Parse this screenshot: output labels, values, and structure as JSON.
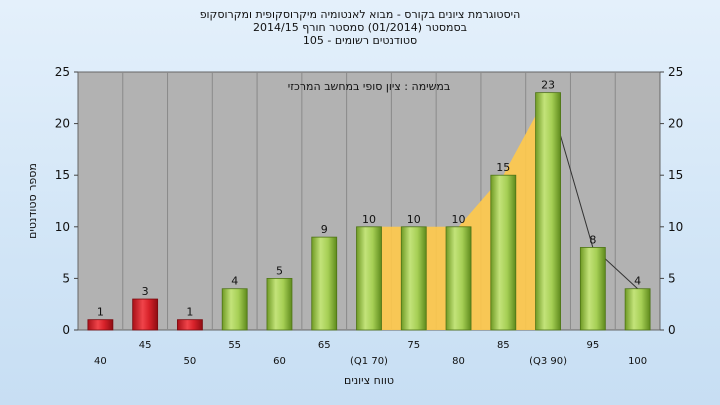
{
  "title_lines": [
    "היסטוגרמת ציונים בקורס - מבוא לאנטומיה מיקרוסקופית ומקרוסקופ",
    "בסמסטר  (01/2014)  סמסטר חורף 2014/15",
    "105 - סטודנטים רשומים"
  ],
  "chart_data": {
    "type": "bar",
    "categories": [
      "40",
      "45",
      "50",
      "55",
      "60",
      "65",
      "(Q1 70)",
      "75",
      "80",
      "85",
      "(Q3 90)",
      "95",
      "100"
    ],
    "values": [
      1,
      3,
      1,
      4,
      5,
      9,
      10,
      10,
      10,
      15,
      23,
      8,
      4
    ],
    "bar_colors": [
      "red",
      "red",
      "red",
      "green",
      "green",
      "green",
      "green",
      "green",
      "green",
      "green",
      "green",
      "green",
      "green"
    ],
    "xlabel": "טווח ציונים",
    "ylabel": "מספר סטודנטים",
    "ylim": [
      0,
      25
    ],
    "yticks": [
      0,
      5,
      10,
      15,
      20,
      25
    ],
    "annotation": "במשימה : ציון סופי במחשב המרכזי",
    "area_overlay": {
      "from_category": "(Q1 70)",
      "to_category": "(Q3 90)",
      "color": "#ffc94a"
    },
    "grid": "vertical"
  },
  "colors": {
    "plot_bg": "#b2b2b2",
    "red_bar": "#d8222a",
    "green_bar": "#8fbf3c",
    "area": "#ffc94a"
  }
}
